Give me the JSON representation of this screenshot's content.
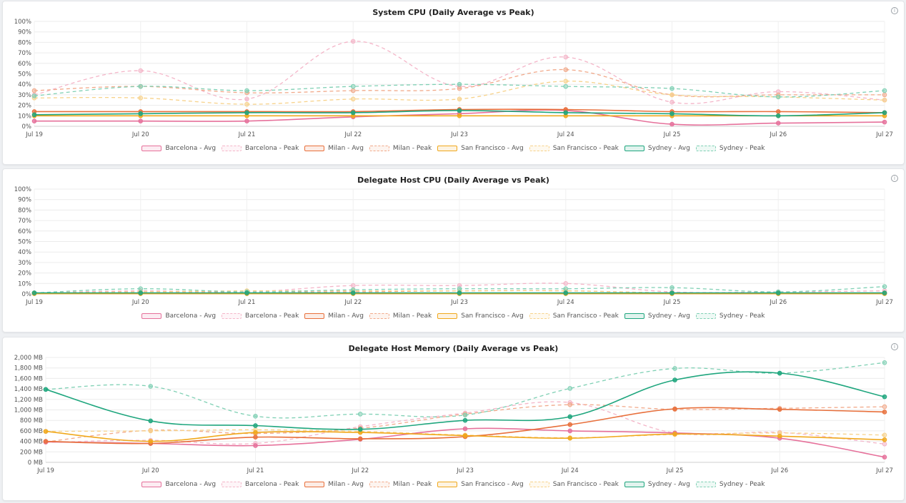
{
  "colors": {
    "barcelona": "#e6719b",
    "milan": "#e8703c",
    "san_francisco": "#f0a81c",
    "sydney": "#1fa67e"
  },
  "legend": [
    {
      "label": "Barcelona - Avg",
      "color": "#e6719b",
      "dashed": false
    },
    {
      "label": "Barcelona - Peak",
      "color": "#f4b5c8",
      "dashed": true
    },
    {
      "label": "Milan - Avg",
      "color": "#e8703c",
      "dashed": false
    },
    {
      "label": "Milan - Peak",
      "color": "#f1a98a",
      "dashed": true
    },
    {
      "label": "San Francisco - Avg",
      "color": "#f0a81c",
      "dashed": false
    },
    {
      "label": "San Francisco - Peak",
      "color": "#f7d28a",
      "dashed": true
    },
    {
      "label": "Sydney - Avg",
      "color": "#1fa67e",
      "dashed": false
    },
    {
      "label": "Sydney - Peak",
      "color": "#7fd0b4",
      "dashed": true
    }
  ],
  "chart_data": [
    {
      "type": "line",
      "title": "System CPU (Daily Average vs Peak)",
      "categories": [
        "Jul 19",
        "Jul 20",
        "Jul 21",
        "Jul 22",
        "Jul 23",
        "Jul 24",
        "Jul 25",
        "Jul 26",
        "Jul 27"
      ],
      "yticks": [
        "0%",
        "10%",
        "20%",
        "30%",
        "40%",
        "50%",
        "60%",
        "70%",
        "80%",
        "90%",
        "100%"
      ],
      "ylim": [
        0,
        100
      ],
      "grid": true,
      "legend_position": "bottom",
      "series": [
        {
          "name": "Barcelona - Avg",
          "values": [
            5,
            5,
            5,
            9,
            12,
            15,
            2,
            3,
            4
          ]
        },
        {
          "name": "Barcelona - Peak",
          "values": [
            30,
            53,
            26,
            81,
            38,
            66,
            23,
            33,
            25
          ]
        },
        {
          "name": "Milan - Avg",
          "values": [
            14,
            14,
            14,
            14,
            16,
            16,
            14,
            14,
            13
          ]
        },
        {
          "name": "Milan - Peak",
          "values": [
            34,
            38,
            32,
            34,
            36,
            54,
            30,
            30,
            30
          ]
        },
        {
          "name": "San Francisco - Avg",
          "values": [
            10,
            10,
            10,
            10,
            10,
            10,
            10,
            10,
            10
          ]
        },
        {
          "name": "San Francisco - Peak",
          "values": [
            27,
            27,
            21,
            26,
            26,
            43,
            30,
            28,
            25
          ]
        },
        {
          "name": "Sydney - Avg",
          "values": [
            11,
            12,
            13,
            13,
            15,
            13,
            12,
            10,
            13
          ]
        },
        {
          "name": "Sydney - Peak",
          "values": [
            29,
            38,
            34,
            38,
            40,
            38,
            36,
            28,
            34
          ]
        }
      ]
    },
    {
      "type": "line",
      "title": "Delegate Host CPU (Daily Average vs Peak)",
      "categories": [
        "Jul 19",
        "Jul 20",
        "Jul 21",
        "Jul 22",
        "Jul 23",
        "Jul 24",
        "Jul 25",
        "Jul 26",
        "Jul 27"
      ],
      "yticks": [
        "0%",
        "10%",
        "20%",
        "30%",
        "40%",
        "50%",
        "60%",
        "70%",
        "80%",
        "90%",
        "100%"
      ],
      "ylim": [
        0,
        100
      ],
      "grid": true,
      "legend_position": "bottom",
      "series": [
        {
          "name": "Barcelona - Avg",
          "values": [
            0.5,
            0.8,
            0.5,
            0.8,
            0.8,
            0.8,
            0.5,
            0.5,
            0.5
          ]
        },
        {
          "name": "Barcelona - Peak",
          "values": [
            1,
            3,
            2,
            8,
            8,
            10,
            2,
            2,
            3
          ]
        },
        {
          "name": "Milan - Avg",
          "values": [
            0.5,
            0.5,
            0.5,
            0.5,
            0.5,
            0.5,
            0.5,
            0.5,
            0.5
          ]
        },
        {
          "name": "Milan - Peak",
          "values": [
            1,
            2,
            2,
            2,
            3,
            3,
            1,
            1,
            1
          ]
        },
        {
          "name": "San Francisco - Avg",
          "values": [
            0.3,
            0.3,
            0.3,
            0.3,
            0.3,
            0.3,
            0.3,
            0.3,
            0.3
          ]
        },
        {
          "name": "San Francisco - Peak",
          "values": [
            1,
            2,
            3,
            3,
            3,
            3,
            1,
            1,
            1
          ]
        },
        {
          "name": "Sydney - Avg",
          "values": [
            1,
            1,
            1,
            1,
            1,
            1,
            1,
            1,
            1
          ]
        },
        {
          "name": "Sydney - Peak",
          "values": [
            1,
            5,
            2,
            4,
            5,
            5,
            6,
            2,
            7
          ]
        }
      ]
    },
    {
      "type": "line",
      "title": "Delegate Host Memory (Daily Average vs Peak)",
      "categories": [
        "Jul 19",
        "Jul 20",
        "Jul 21",
        "Jul 22",
        "Jul 23",
        "Jul 24",
        "Jul 25",
        "Jul 26",
        "Jul 27"
      ],
      "yticks": [
        "0 MB",
        "200 MB",
        "400 MB",
        "600 MB",
        "800 MB",
        "1,000 MB",
        "1,200 MB",
        "1,400 MB",
        "1,600 MB",
        "1,800 MB",
        "2,000 MB"
      ],
      "ylim": [
        0,
        2000
      ],
      "grid": true,
      "legend_position": "bottom",
      "series": [
        {
          "name": "Barcelona - Avg",
          "values": [
            390,
            360,
            320,
            440,
            640,
            600,
            560,
            460,
            100
          ]
        },
        {
          "name": "Barcelona - Peak",
          "values": [
            380,
            420,
            360,
            680,
            940,
            1140,
            560,
            570,
            350
          ]
        },
        {
          "name": "Milan - Avg",
          "values": [
            400,
            360,
            480,
            450,
            490,
            720,
            1020,
            1010,
            960
          ]
        },
        {
          "name": "Milan - Peak",
          "values": [
            390,
            610,
            550,
            650,
            920,
            1100,
            1010,
            1030,
            1060
          ]
        },
        {
          "name": "San Francisco - Avg",
          "values": [
            590,
            400,
            570,
            570,
            510,
            460,
            540,
            500,
            430
          ]
        },
        {
          "name": "San Francisco - Peak",
          "values": [
            590,
            600,
            620,
            590,
            520,
            470,
            530,
            560,
            520
          ]
        },
        {
          "name": "Sydney - Avg",
          "values": [
            1390,
            790,
            700,
            630,
            800,
            870,
            1570,
            1700,
            1250
          ]
        },
        {
          "name": "Sydney - Peak",
          "values": [
            1390,
            1450,
            880,
            920,
            900,
            1410,
            1790,
            1700,
            1900
          ]
        }
      ]
    }
  ]
}
